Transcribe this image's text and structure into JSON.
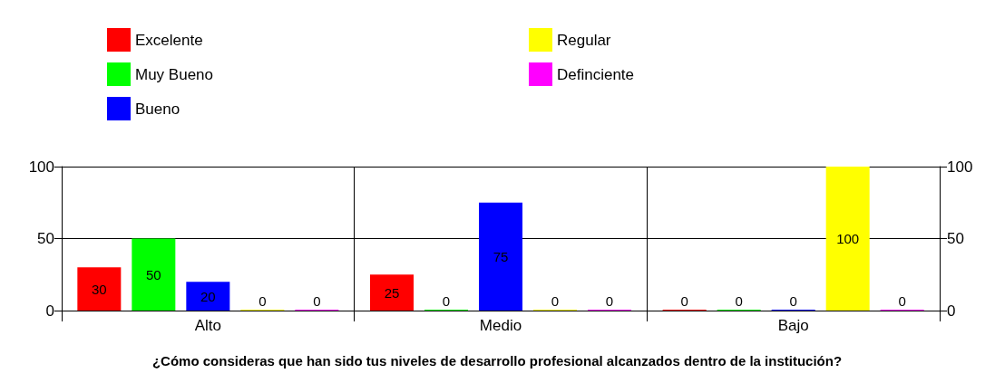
{
  "chart_data": {
    "type": "bar",
    "title": "¿Cómo consideras que han sido tus niveles de desarrollo profesional alcanzados dentro de la institución?",
    "categories": [
      "Alto",
      "Medio",
      "Bajo"
    ],
    "series": [
      {
        "name": "Excelente",
        "color": "#ff0000",
        "values": [
          30,
          25,
          0
        ]
      },
      {
        "name": "Muy Bueno",
        "color": "#00ff00",
        "values": [
          50,
          0,
          0
        ]
      },
      {
        "name": "Bueno",
        "color": "#0000ff",
        "values": [
          20,
          75,
          0
        ]
      },
      {
        "name": "Regular",
        "color": "#ffff00",
        "values": [
          0,
          0,
          100
        ]
      },
      {
        "name": "Definciente",
        "color": "#ff00ff",
        "values": [
          0,
          0,
          0
        ]
      }
    ],
    "ylim": [
      0,
      100
    ],
    "yticks": [
      0,
      50,
      100
    ],
    "y2lim": [
      0,
      100
    ],
    "y2ticks": [
      0,
      50,
      100
    ],
    "grid": true,
    "legend": "top left",
    "data_labels": true
  }
}
